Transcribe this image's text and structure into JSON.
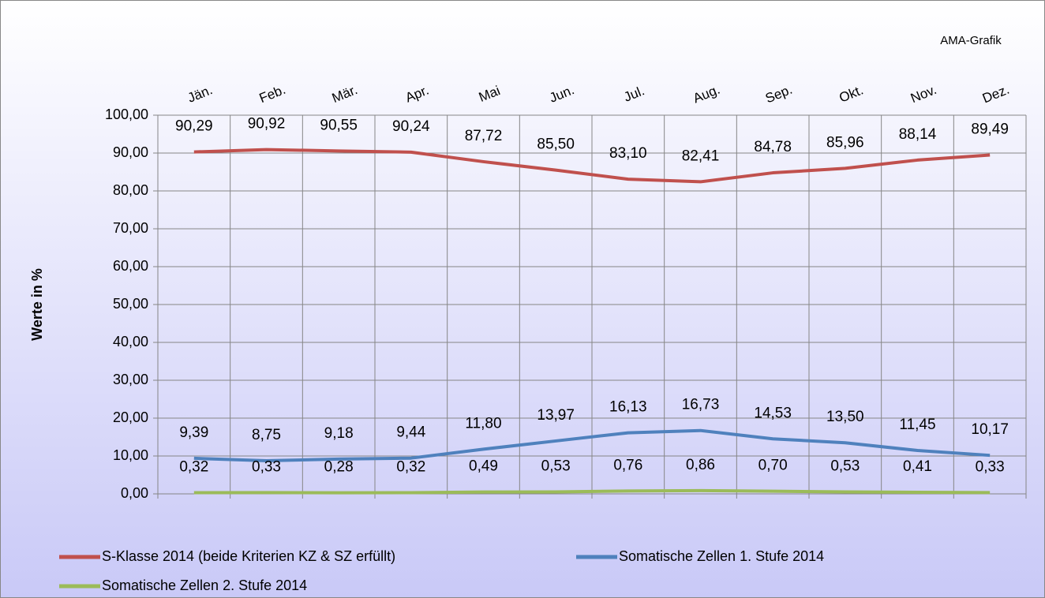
{
  "chart_data": {
    "type": "line",
    "annotation": "AMA-Grafik",
    "y_label": "Werte in %",
    "categories": [
      "Jän.",
      "Feb.",
      "Mär.",
      "Apr.",
      "Mai",
      "Jun.",
      "Jul.",
      "Aug.",
      "Sep.",
      "Okt.",
      "Nov.",
      "Dez."
    ],
    "series": [
      {
        "name": "S-Klasse 2014 (beide Kriterien KZ & SZ erfüllt)",
        "color": "#c0504d",
        "values": [
          90.29,
          90.92,
          90.55,
          90.24,
          87.72,
          85.5,
          83.1,
          82.41,
          84.78,
          85.96,
          88.14,
          89.49
        ],
        "value_labels": [
          "90,29",
          "90,92",
          "90,55",
          "90,24",
          "87,72",
          "85,50",
          "83,10",
          "82,41",
          "84,78",
          "85,96",
          "88,14",
          "89,49"
        ]
      },
      {
        "name": "Somatische Zellen 1. Stufe 2014",
        "color": "#4f81bd",
        "values": [
          9.39,
          8.75,
          9.18,
          9.44,
          11.8,
          13.97,
          16.13,
          16.73,
          14.53,
          13.5,
          11.45,
          10.17
        ],
        "value_labels": [
          "9,39",
          "8,75",
          "9,18",
          "9,44",
          "11,80",
          "13,97",
          "16,13",
          "16,73",
          "14,53",
          "13,50",
          "11,45",
          "10,17"
        ]
      },
      {
        "name": "Somatische Zellen 2. Stufe 2014",
        "color": "#9bbb59",
        "values": [
          0.32,
          0.33,
          0.28,
          0.32,
          0.49,
          0.53,
          0.76,
          0.86,
          0.7,
          0.53,
          0.41,
          0.33
        ],
        "value_labels": [
          "0,32",
          "0,33",
          "0,28",
          "0,32",
          "0,49",
          "0,53",
          "0,76",
          "0,86",
          "0,70",
          "0,53",
          "0,41",
          "0,33"
        ]
      }
    ],
    "ylim": [
      0,
      100
    ],
    "yticks": [
      {
        "value": 0,
        "label": "0,00"
      },
      {
        "value": 10,
        "label": "10,00"
      },
      {
        "value": 20,
        "label": "20,00"
      },
      {
        "value": 30,
        "label": "30,00"
      },
      {
        "value": 40,
        "label": "40,00"
      },
      {
        "value": 50,
        "label": "50,00"
      },
      {
        "value": 60,
        "label": "60,00"
      },
      {
        "value": 70,
        "label": "70,00"
      },
      {
        "value": 80,
        "label": "80,00"
      },
      {
        "value": 90,
        "label": "90,00"
      },
      {
        "value": 100,
        "label": "100,00"
      }
    ],
    "grid": true
  }
}
